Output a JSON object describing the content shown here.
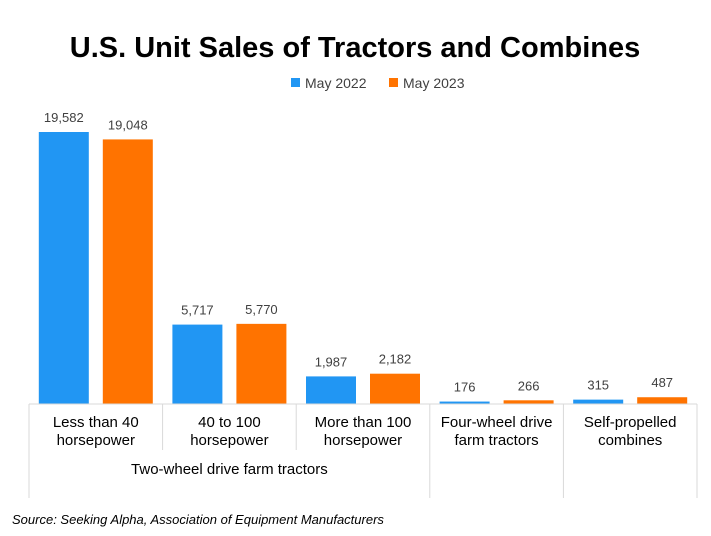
{
  "chart_data": {
    "type": "bar",
    "title": "U.S. Unit Sales of Tractors and Combines",
    "categories": [
      "Less than 40 horsepower",
      "40 to 100 horsepower",
      "More than 100 horsepower",
      "Four-wheel drive farm tractors",
      "Self-propelled combines"
    ],
    "category_lines": [
      [
        "Less than 40",
        "horsepower"
      ],
      [
        "40 to 100",
        "horsepower"
      ],
      [
        "More than 100",
        "horsepower"
      ],
      [
        "Four-wheel drive",
        "farm tractors"
      ],
      [
        "Self-propelled",
        "combines"
      ]
    ],
    "groups": [
      {
        "label": "Two-wheel drive farm tractors",
        "categories": [
          0,
          1,
          2
        ]
      },
      {
        "label": "",
        "categories": [
          3
        ]
      },
      {
        "label": "",
        "categories": [
          4
        ]
      }
    ],
    "series": [
      {
        "name": "May 2022",
        "color": "#2196F3",
        "values": [
          19582,
          5717,
          1987,
          176,
          315
        ]
      },
      {
        "name": "May 2023",
        "color": "#FF7300",
        "values": [
          19048,
          5770,
          2182,
          266,
          487
        ]
      }
    ],
    "ylim": [
      0,
      20000
    ],
    "grid": false,
    "legend_position": "top",
    "source": "Source: Seeking Alpha, Association of Equipment Manufacturers",
    "xlabel": "",
    "ylabel": ""
  }
}
